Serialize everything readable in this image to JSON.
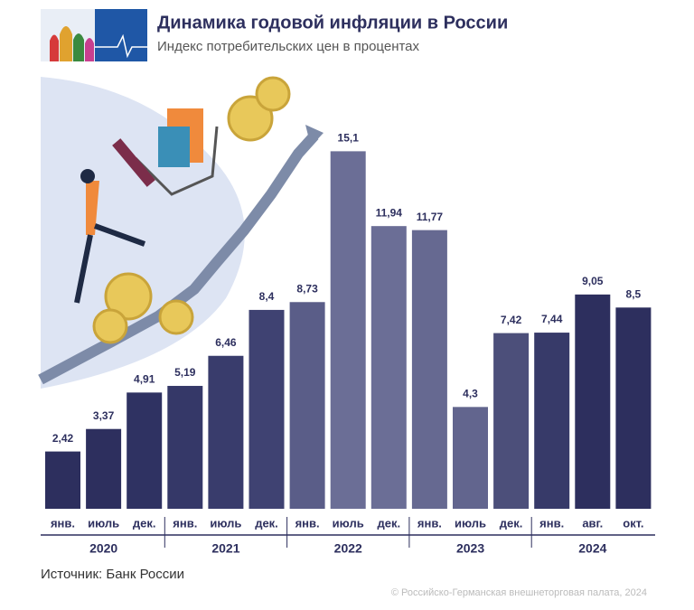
{
  "chart_data": {
    "type": "bar",
    "title": "Динамика годовой инфляции в России",
    "subtitle": "Индекс потребительских цен в процентах",
    "categories": [
      "янв.",
      "июль",
      "дек.",
      "янв.",
      "июль",
      "дек.",
      "янв.",
      "июль",
      "дек.",
      "янв.",
      "июль",
      "дек.",
      "янв.",
      "авг.",
      "окт."
    ],
    "year_groups": [
      "2020",
      "2021",
      "2022",
      "2023",
      "2024"
    ],
    "values": [
      2.42,
      3.37,
      4.91,
      5.19,
      6.46,
      8.4,
      8.73,
      15.1,
      11.94,
      11.77,
      4.3,
      7.42,
      7.44,
      9.05,
      8.5
    ],
    "value_labels": [
      "2,42",
      "3,37",
      "4,91",
      "5,19",
      "6,46",
      "8,4",
      "8,73",
      "15,1",
      "11,94",
      "11,77",
      "4,3",
      "7,42",
      "7,44",
      "9,05",
      "8,5"
    ],
    "colors": [
      "#2d2f5e",
      "#2d2f5e",
      "#2f3262",
      "#353868",
      "#393c6c",
      "#3f4272",
      "#5a5d88",
      "#6b6e96",
      "#6b6e96",
      "#666991",
      "#62658e",
      "#4c4f7a",
      "#373a69",
      "#2d2f5e",
      "#2d2f5e"
    ],
    "source": "Источник: Банк России",
    "copyright": "© Российско-Германская внешнеторговая палата, 2024"
  }
}
